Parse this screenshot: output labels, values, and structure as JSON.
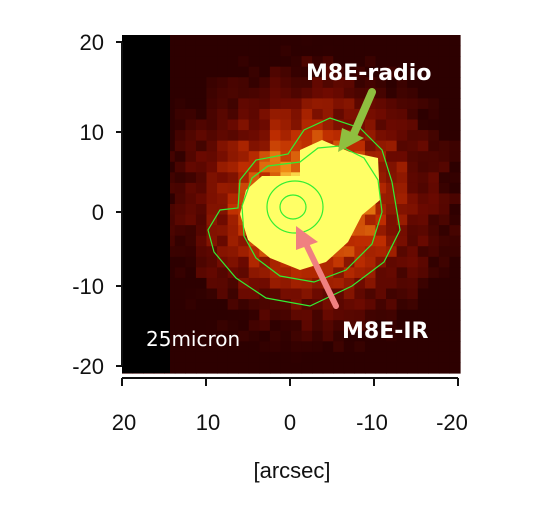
{
  "image": {
    "description_colors": {
      "background": "#ffffff",
      "map_dark": "#2a0000",
      "map_mid": "#c23a00",
      "map_bright": "#ffff66",
      "contour": "#33ee33"
    },
    "y_ticks": [
      "20",
      "10",
      "0",
      "-10",
      "-20"
    ],
    "x_ticks": [
      "20",
      "10",
      "0",
      "-10",
      "-20"
    ],
    "x_label": "[arcsec]",
    "band_label": "25micron",
    "annotations": {
      "radio": {
        "text": "M8E-radio",
        "arrow_color": "#8fbf3f"
      },
      "ir": {
        "text": "M8E-IR",
        "arrow_color": "#f08080"
      }
    }
  }
}
